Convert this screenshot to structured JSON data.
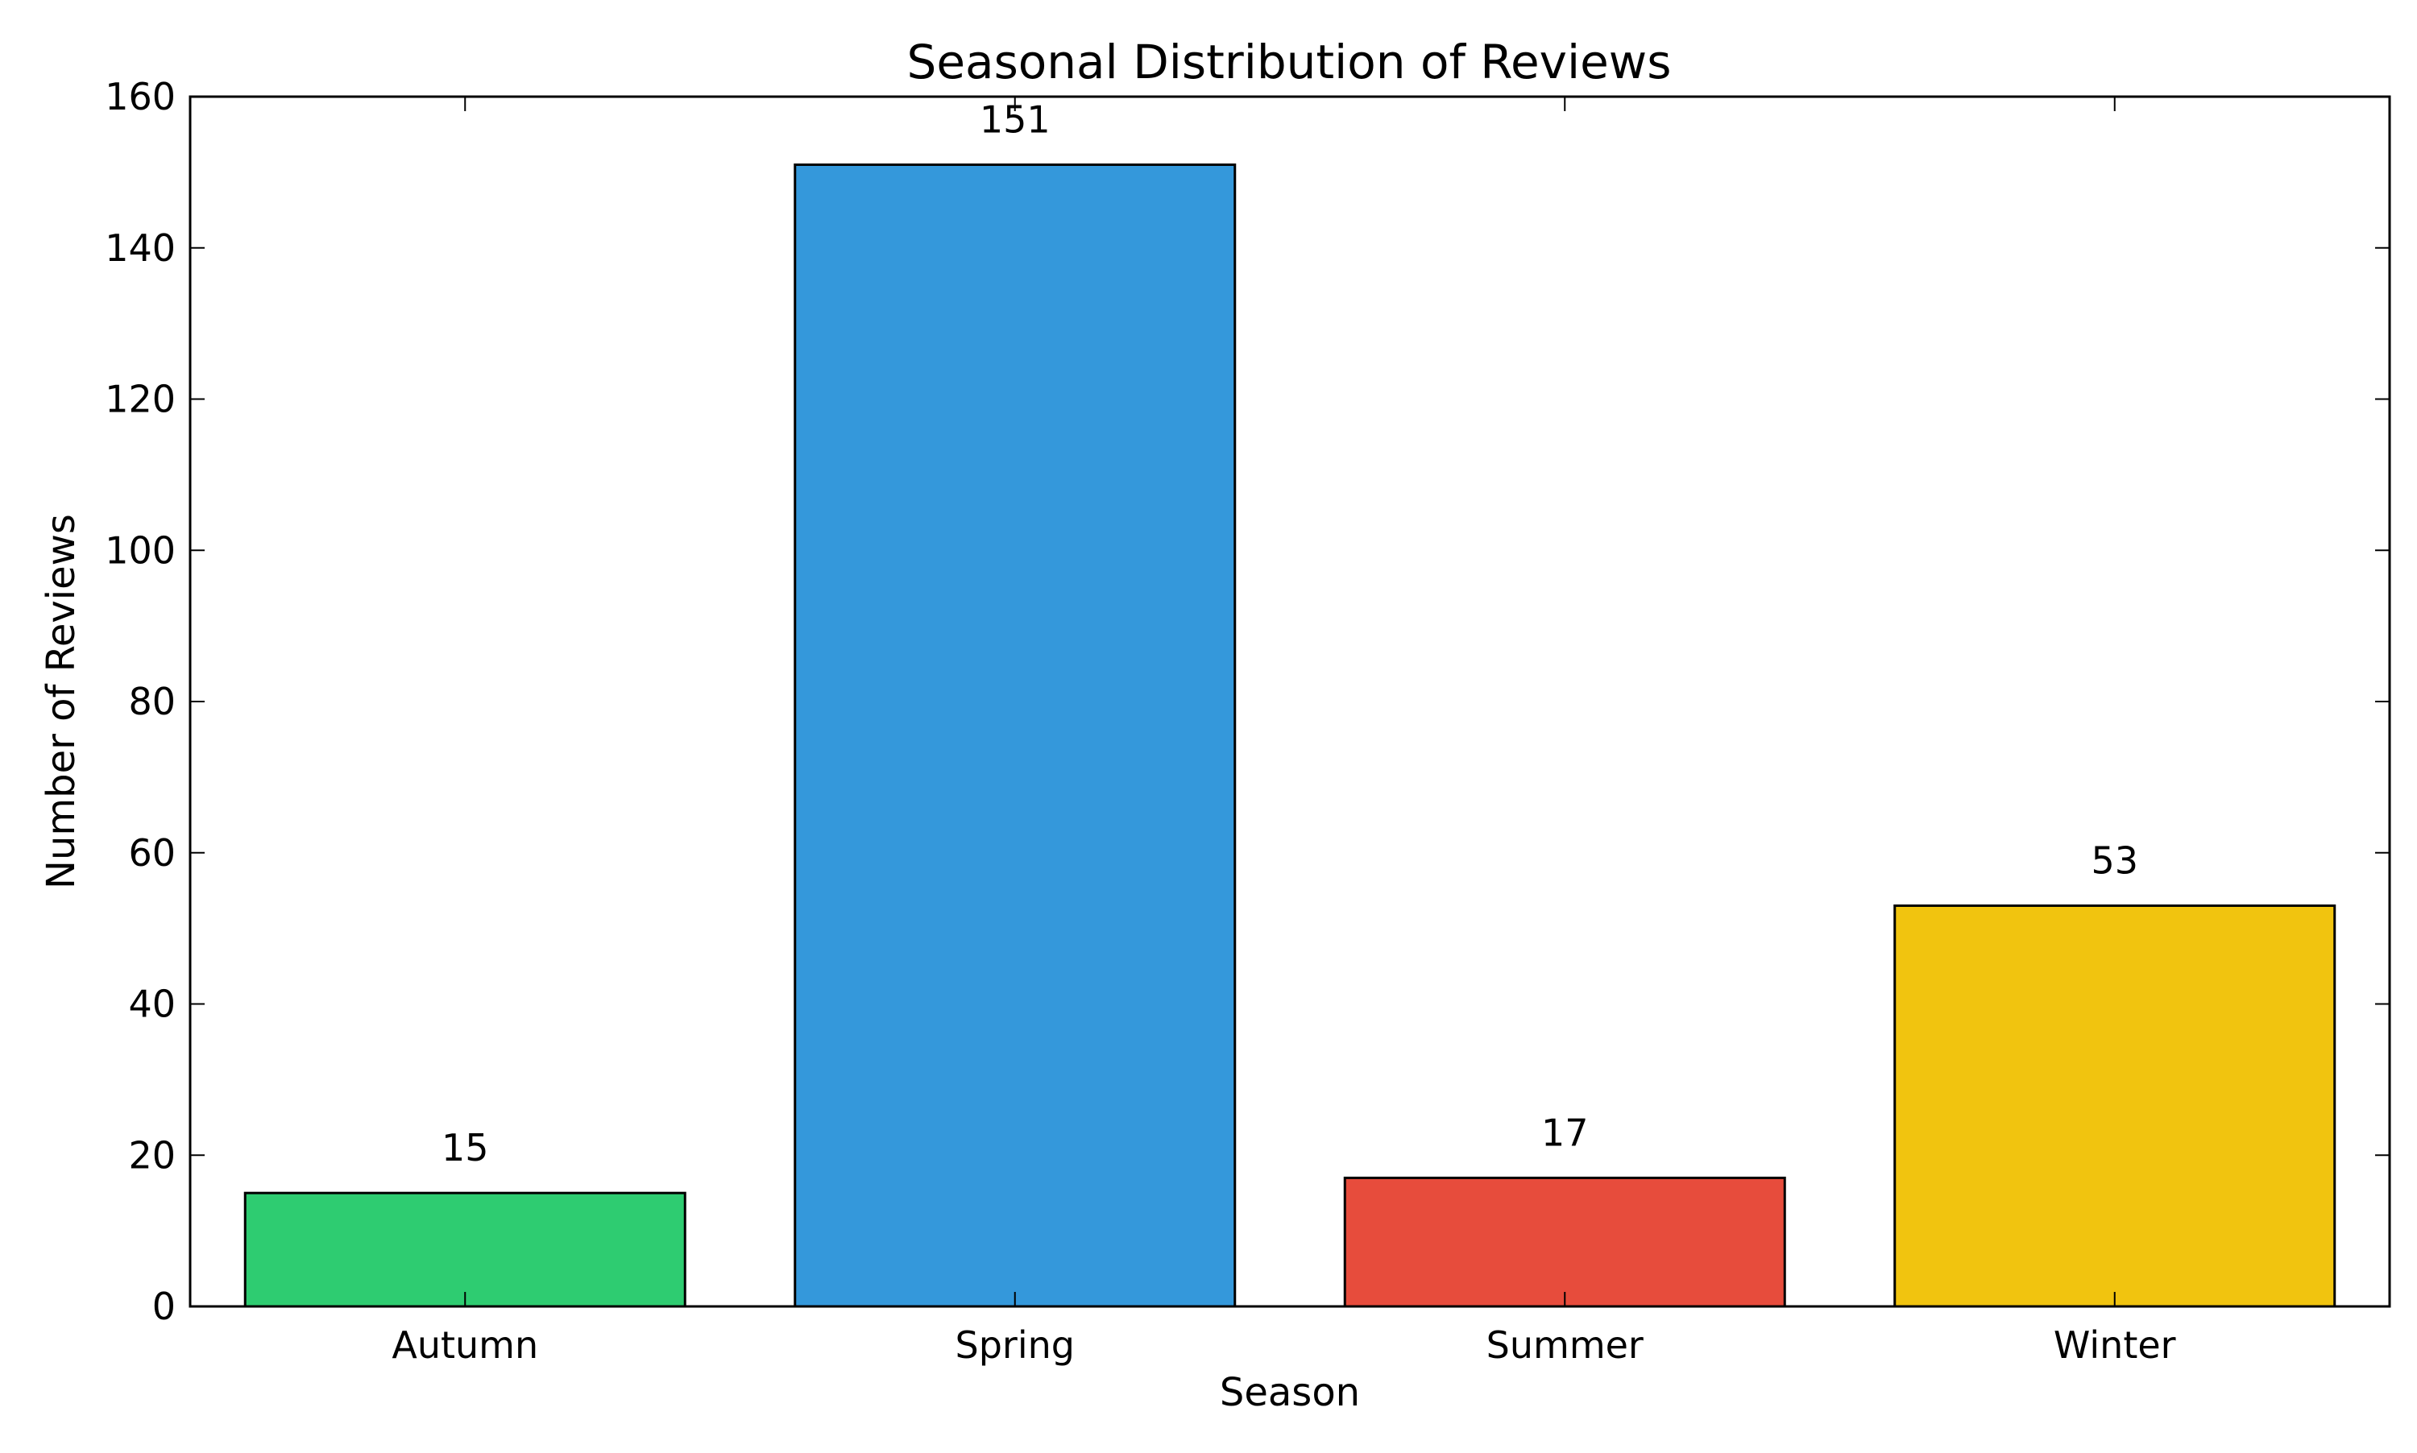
{
  "chart_data": {
    "type": "bar",
    "title": "Seasonal Distribution of Reviews",
    "xlabel": "Season",
    "ylabel": "Number of Reviews",
    "categories": [
      "Autumn",
      "Spring",
      "Summer",
      "Winter"
    ],
    "values": [
      15,
      151,
      17,
      53
    ],
    "value_labels": [
      "15",
      "151",
      "17",
      "53"
    ],
    "colors": [
      "#2ecc71",
      "#3498db",
      "#e74c3c",
      "#f1c40f"
    ],
    "ylim": [
      0,
      160
    ],
    "yticks": [
      0,
      20,
      40,
      60,
      80,
      100,
      120,
      140,
      160
    ],
    "ytick_labels": [
      "0",
      "20",
      "40",
      "60",
      "80",
      "100",
      "120",
      "140",
      "160"
    ],
    "grid": false,
    "legend": "none"
  }
}
